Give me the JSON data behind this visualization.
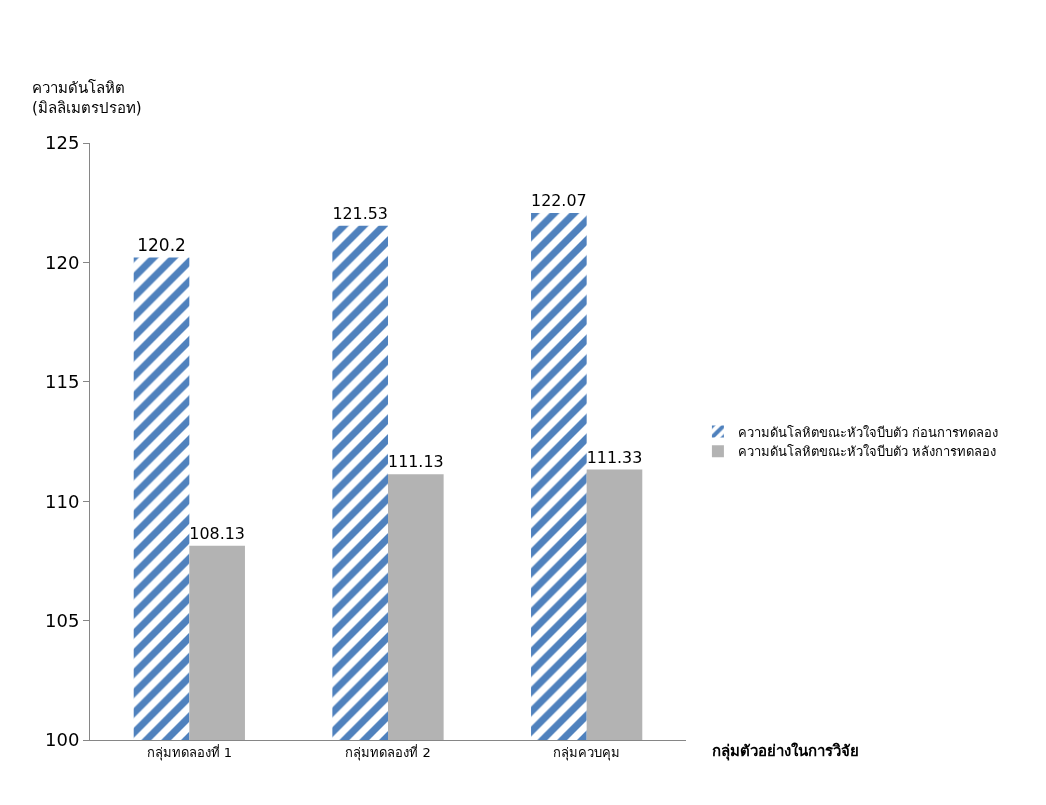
{
  "chart_data": {
    "type": "bar",
    "ylabel": "ความดันโลหิต\n(มิลลิเมตรปรอท)",
    "xlabel": "กลุ่มตัวอย่างในการวิจัย",
    "categories": [
      "กลุ่มทดลองที่ 1",
      "กลุ่มทดลองที่ 2",
      "กลุ่มควบคุม"
    ],
    "series": [
      {
        "name": "ความดันโลหิตขณะหัวใจบีบตัว ก่อนการทดลอง",
        "color": "#4f81bd",
        "values": [
          120.2,
          121.53,
          122.07
        ]
      },
      {
        "name": "ความดันโลหิตขณะหัวใจบีบตัว หลังการทดลอง",
        "color": "#b3b3b3",
        "values": [
          108.13,
          111.13,
          111.33
        ]
      }
    ],
    "ylim": [
      100,
      125
    ],
    "yticks": [
      100,
      105,
      110,
      115,
      120,
      125
    ],
    "data_labels": true,
    "legend": "right"
  }
}
